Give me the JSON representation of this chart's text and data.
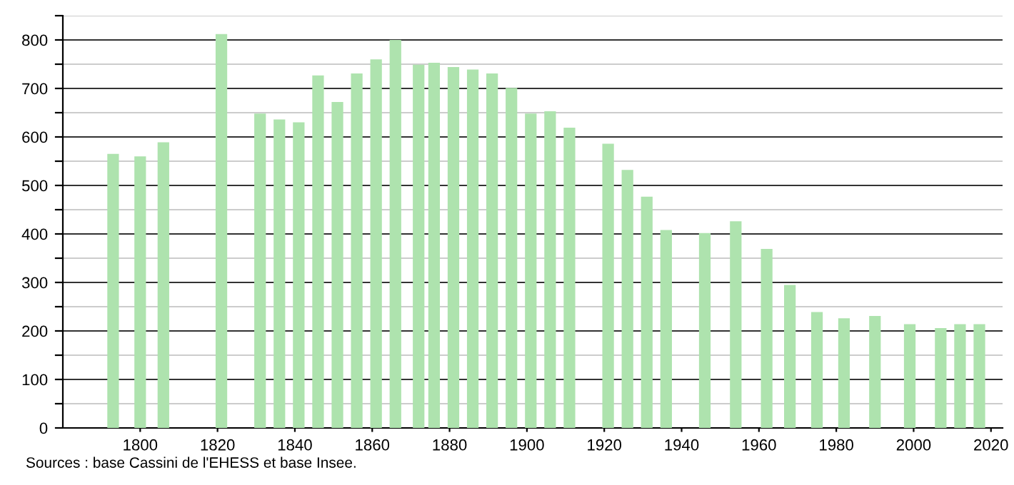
{
  "chart_data": {
    "type": "bar",
    "color": "#aee3ae",
    "x": [
      1793,
      1800,
      1806,
      1821,
      1831,
      1836,
      1841,
      1846,
      1851,
      1856,
      1861,
      1866,
      1872,
      1876,
      1881,
      1886,
      1891,
      1896,
      1901,
      1906,
      1911,
      1921,
      1926,
      1931,
      1936,
      1946,
      1954,
      1962,
      1968,
      1975,
      1982,
      1990,
      1999,
      2007,
      2012,
      2017
    ],
    "values": [
      565,
      560,
      589,
      812,
      648,
      636,
      630,
      727,
      672,
      731,
      760,
      800,
      749,
      753,
      744,
      739,
      731,
      701,
      648,
      653,
      619,
      586,
      532,
      477,
      408,
      402,
      426,
      369,
      295,
      239,
      226,
      231,
      214,
      206,
      214,
      214
    ],
    "xlim": [
      1780,
      2023
    ],
    "xticks": [
      1800,
      1820,
      1840,
      1860,
      1880,
      1900,
      1920,
      1940,
      1960,
      1980,
      2000,
      2020
    ],
    "ylim": [
      0,
      850
    ],
    "yticks": [
      0,
      {
        "value": 50,
        "label": null
      },
      100,
      {
        "value": 150,
        "label": null
      },
      200,
      {
        "value": 250,
        "label": null
      },
      300,
      {
        "value": 350,
        "label": null
      },
      400,
      {
        "value": 450,
        "label": null
      },
      500,
      {
        "value": 550,
        "label": null
      },
      600,
      {
        "value": 650,
        "label": null
      },
      700,
      {
        "value": 750,
        "label": null
      },
      800,
      {
        "value": 850,
        "label": null
      }
    ],
    "grid": "y",
    "annotations": [
      "Sources : base Cassini de l'EHESS et base Insee."
    ]
  }
}
